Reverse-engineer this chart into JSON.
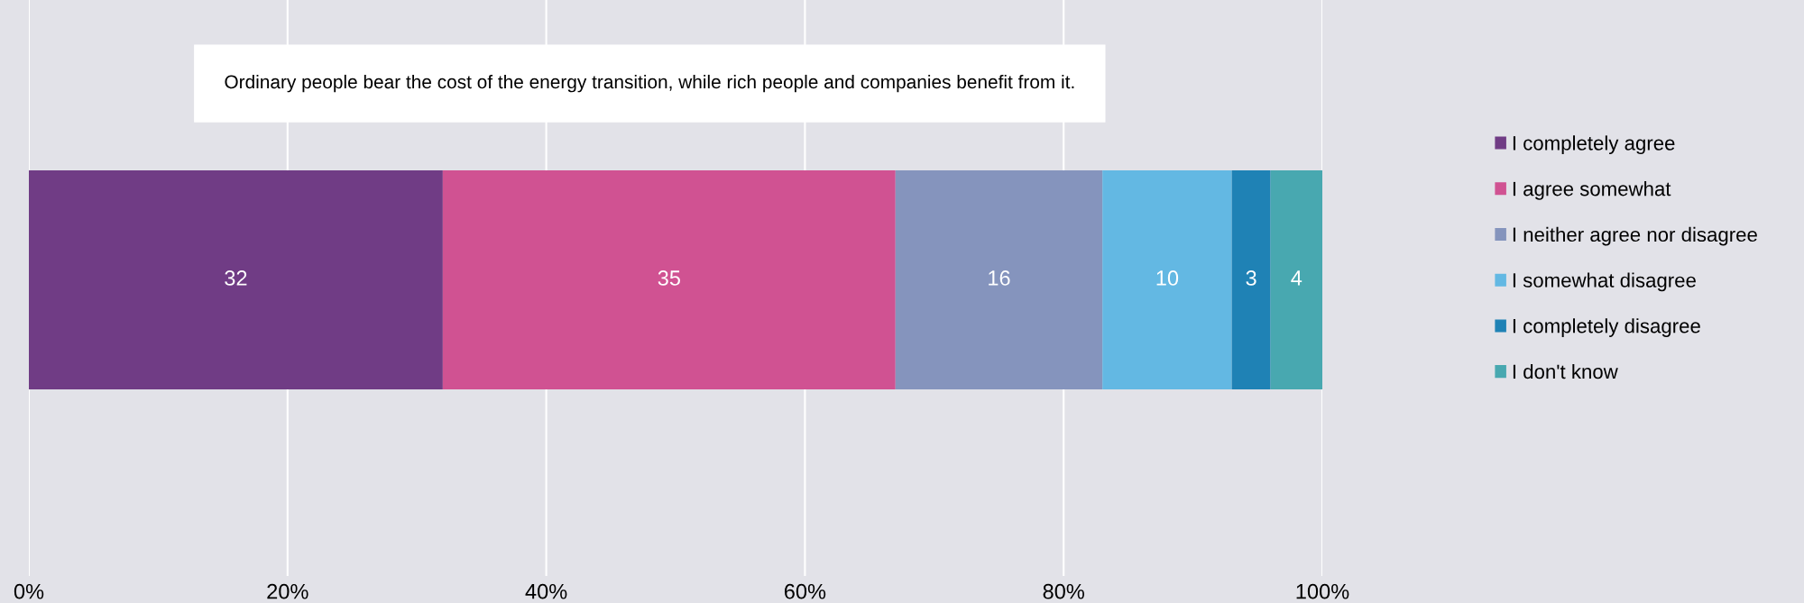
{
  "chart_data": {
    "type": "bar",
    "orientation": "horizontal",
    "stacked": true,
    "title": "Ordinary people bear the cost of the energy transition, while rich people and companies benefit from it.",
    "categories": [
      null
    ],
    "series": [
      {
        "name": "I completely agree",
        "color": "#703c85",
        "values": [
          32
        ]
      },
      {
        "name": "I agree somewhat",
        "color": "#d05292",
        "values": [
          35
        ]
      },
      {
        "name": "I neither agree nor disagree",
        "color": "#8594bd",
        "values": [
          16
        ]
      },
      {
        "name": "I somewhat disagree",
        "color": "#63b8e3",
        "values": [
          10
        ]
      },
      {
        "name": "I completely disagree",
        "color": "#1f82b5",
        "values": [
          3
        ]
      },
      {
        "name": "I don't know",
        "color": "#48a8b0",
        "values": [
          4
        ]
      }
    ],
    "xlim": [
      0,
      100
    ],
    "xticks": [
      {
        "value": 0,
        "label": "0%"
      },
      {
        "value": 20,
        "label": "20%"
      },
      {
        "value": 40,
        "label": "40%"
      },
      {
        "value": 60,
        "label": "60%"
      },
      {
        "value": 80,
        "label": "80%"
      },
      {
        "value": 100,
        "label": "100%"
      }
    ],
    "grid": "x",
    "legend": "right",
    "data_labels": true
  }
}
